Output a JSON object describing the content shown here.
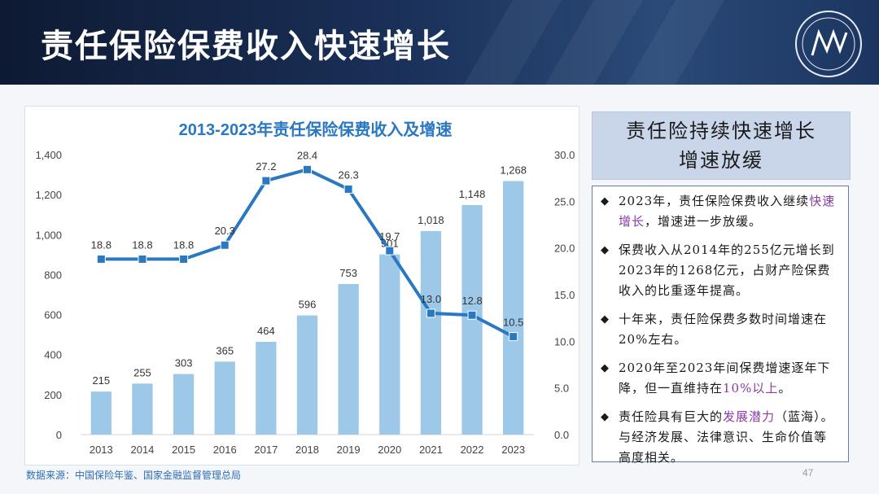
{
  "header": {
    "title": "责任保险保费收入快速增长"
  },
  "chart_data": {
    "type": "bar+line",
    "title": "2013-2023年责任保险保费收入及增速",
    "categories": [
      "2013",
      "2014",
      "2015",
      "2016",
      "2017",
      "2018",
      "2019",
      "2020",
      "2021",
      "2022",
      "2023"
    ],
    "series": [
      {
        "type": "bar",
        "axis": "left",
        "values": [
          215,
          255,
          303,
          365,
          464,
          596,
          753,
          901,
          1018,
          1148,
          1268
        ],
        "labels": [
          "215",
          "255",
          "303",
          "365",
          "464",
          "596",
          "753",
          "901",
          "1,018",
          "1,148",
          "1,268"
        ]
      },
      {
        "type": "line",
        "axis": "right",
        "values": [
          18.8,
          18.8,
          18.8,
          20.3,
          27.2,
          28.4,
          26.3,
          19.7,
          13.0,
          12.8,
          10.5
        ],
        "labels": [
          "18.8",
          "18.8",
          "18.8",
          "20.3",
          "27.2",
          "28.4",
          "26.3",
          "19.7",
          "13.0",
          "12.8",
          "10.5"
        ]
      }
    ],
    "y_left": {
      "range": [
        0,
        1400
      ],
      "ticks": [
        "0",
        "200",
        "400",
        "600",
        "800",
        "1,000",
        "1,200",
        "1,400"
      ]
    },
    "y_right": {
      "range": [
        0,
        30
      ],
      "ticks": [
        "0.0",
        "5.0",
        "10.0",
        "15.0",
        "20.0",
        "25.0",
        "30.0"
      ]
    },
    "colors": {
      "bar": "#9dc8e8",
      "line": "#2b78c2",
      "title": "#2b78c2"
    }
  },
  "side": {
    "title_lines": [
      "责任险持续快速增长",
      "增速放缓"
    ],
    "bullets": [
      {
        "parts": [
          {
            "text": "2023年，责任保险保费收入继续"
          },
          {
            "text": "快速增长",
            "hl": true
          },
          {
            "text": "，增速进一步放缓。"
          }
        ]
      },
      {
        "parts": [
          {
            "text": "保费收入从2014年的255亿元增长到2023年的1268亿元，占财产险保费收入的比重逐年提高。"
          }
        ]
      },
      {
        "parts": [
          {
            "text": "十年来，责任险保费多数时间增速在20%左右。"
          }
        ]
      },
      {
        "parts": [
          {
            "text": "2020年至2023年间保费增速逐年下降，但一直维持在"
          },
          {
            "text": "10%以上",
            "hl": true
          },
          {
            "text": "。"
          }
        ]
      },
      {
        "parts": [
          {
            "text": "责任险具有巨大的"
          },
          {
            "text": "发展潜力",
            "hl": true
          },
          {
            "text": "（蓝海）。与经济发展、法律意识、生命价值等高度相关。"
          }
        ]
      }
    ],
    "bullet_mark": "◆",
    "highlight_color": "#8b3aa8"
  },
  "footer": {
    "source": "数据来源：中国保险年鉴、国家金融监督管理总局",
    "page": "47"
  }
}
